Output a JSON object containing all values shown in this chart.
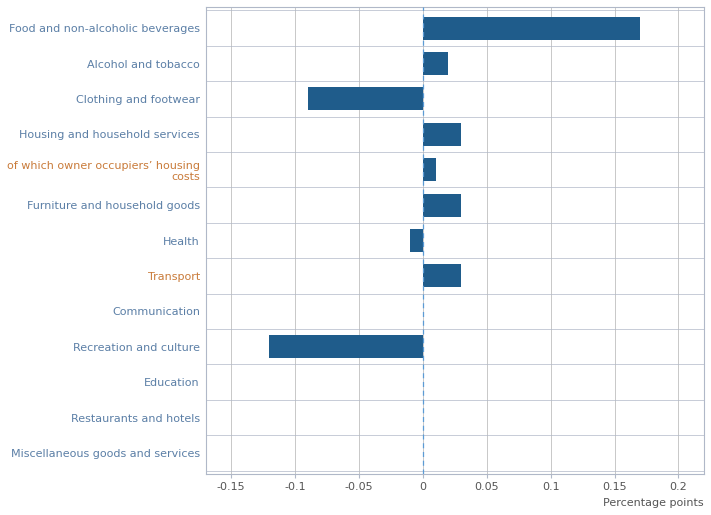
{
  "categories": [
    "Food and non-alcoholic beverages",
    "Alcohol and tobacco",
    "Clothing and footwear",
    "Housing and household services",
    "of which owner occupiers’ housing\ncosts",
    "Furniture and household goods",
    "Health",
    "Transport",
    "Communication",
    "Recreation and culture",
    "Education",
    "Restaurants and hotels",
    "Miscellaneous goods and services"
  ],
  "values": [
    0.17,
    0.02,
    -0.09,
    0.03,
    0.01,
    0.03,
    -0.01,
    0.03,
    0.0,
    -0.12,
    0.0,
    0.0,
    0.0
  ],
  "bar_color": "#1f5c8b",
  "zero_line_color": "#5b9bd5",
  "grid_color": "#c8c8c8",
  "background_color": "#ffffff",
  "xlim": [
    -0.17,
    0.22
  ],
  "xticks": [
    -0.15,
    -0.1,
    -0.05,
    0.0,
    0.05,
    0.1,
    0.15,
    0.2
  ],
  "xtick_labels": [
    "-0.15",
    "-0.1",
    "-0.05",
    "0",
    "0.05",
    "0.1",
    "0.15",
    "0.2"
  ],
  "xlabel": "Percentage points",
  "bar_height": 0.65,
  "figsize": [
    7.11,
    5.15
  ],
  "dpi": 100,
  "label_color_normal": "#5b7fa6",
  "label_color_special": "#c97b3a",
  "spine_color": "#b0b8c8",
  "font_size": 8.0
}
